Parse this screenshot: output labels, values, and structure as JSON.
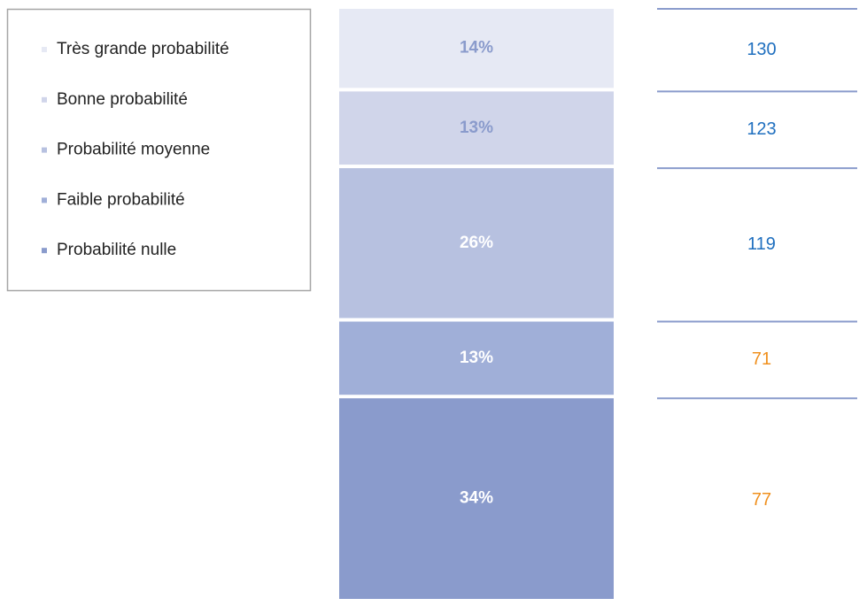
{
  "chart_data": {
    "type": "stacked_bar",
    "ylim": [
      0,
      100
    ],
    "series": [
      {
        "name": "Très grande probabilité",
        "color": "#e6e9f4",
        "label_color": "#8a9bcc",
        "values": [
          14
        ],
        "value_labels": [
          "14%"
        ],
        "count": 130,
        "count_color": "#1f6fbf"
      },
      {
        "name": "Bonne probabilité",
        "color": "#d0d5ea",
        "label_color": "#8a9bcc",
        "values": [
          13
        ],
        "value_labels": [
          "13%"
        ],
        "count": 123,
        "count_color": "#1f6fbf"
      },
      {
        "name": "Probabilité moyenne",
        "color": "#b7c1e0",
        "label_color": "#ffffff",
        "values": [
          26
        ],
        "value_labels": [
          "26%"
        ],
        "count": 119,
        "count_color": "#1f6fbf"
      },
      {
        "name": "Faible probabilité",
        "color": "#a0afd8",
        "label_color": "#ffffff",
        "values": [
          13
        ],
        "value_labels": [
          "13%"
        ],
        "count": 71,
        "count_color": "#f0901e"
      },
      {
        "name": "Probabilité nulle",
        "color": "#8a9bcc",
        "label_color": "#ffffff",
        "values": [
          34
        ],
        "value_labels": [
          "34%"
        ],
        "count": 77,
        "count_color": "#f0901e"
      }
    ]
  }
}
